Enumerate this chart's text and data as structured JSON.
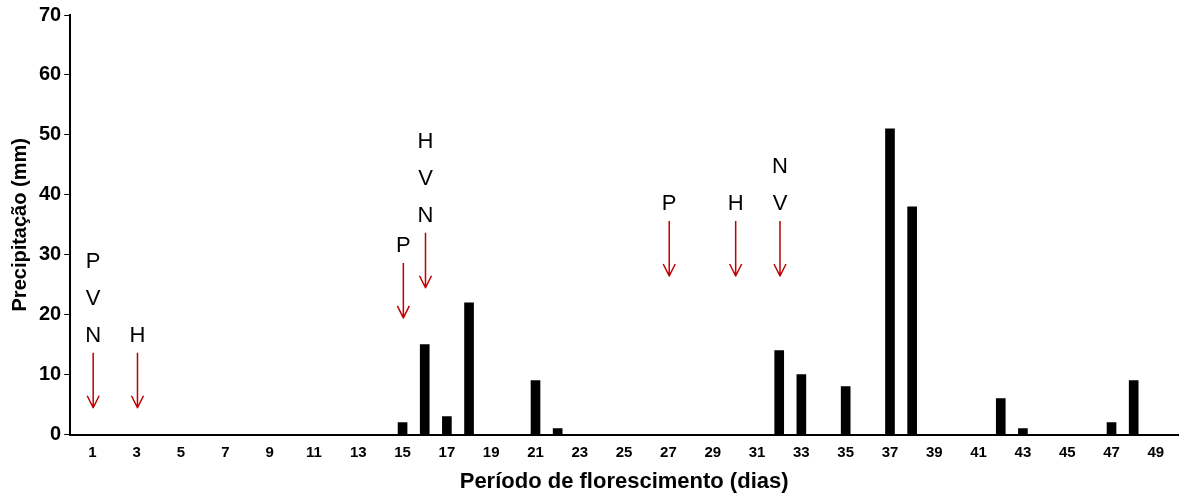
{
  "chart_data": {
    "type": "bar",
    "xlabel": "Período de florescimento (dias)",
    "ylabel": "Precipitação (mm)",
    "x": [
      1,
      2,
      3,
      4,
      5,
      6,
      7,
      8,
      9,
      10,
      11,
      12,
      13,
      14,
      15,
      16,
      17,
      18,
      19,
      20,
      21,
      22,
      23,
      24,
      25,
      26,
      27,
      28,
      29,
      30,
      31,
      32,
      33,
      34,
      35,
      36,
      37,
      38,
      39,
      40,
      41,
      42,
      43,
      44,
      45,
      46,
      47,
      48,
      49
    ],
    "values": [
      0,
      0,
      0,
      0,
      0,
      0,
      0,
      0,
      0,
      0,
      0,
      0,
      0,
      0,
      2,
      15,
      3,
      22,
      0,
      0,
      9,
      1,
      0,
      0,
      0,
      0,
      0,
      0,
      0,
      0,
      0,
      14,
      10,
      0,
      8,
      0,
      51,
      38,
      0,
      0,
      0,
      6,
      1,
      0,
      0,
      0,
      2,
      9,
      0
    ],
    "color": "#000000",
    "xlim": [
      0,
      50
    ],
    "xticks": [
      1,
      3,
      5,
      7,
      9,
      11,
      13,
      15,
      17,
      19,
      21,
      23,
      25,
      27,
      29,
      31,
      33,
      35,
      37,
      39,
      41,
      43,
      45,
      47,
      49
    ],
    "ylim": [
      0,
      70
    ],
    "yticks": [
      0,
      10,
      20,
      30,
      40,
      50,
      60,
      70
    ],
    "grid": false,
    "legend": false,
    "annotations": [
      "P\nV\nN",
      "H",
      "P",
      "H\nV\nN",
      "P",
      "H",
      "N\nV"
    ]
  }
}
